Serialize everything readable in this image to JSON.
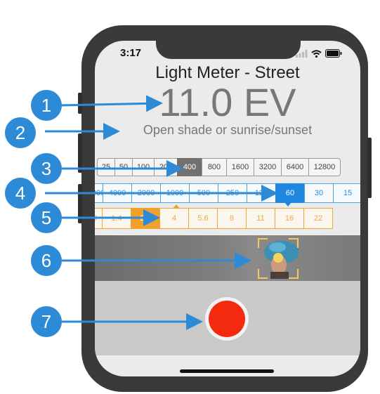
{
  "status": {
    "time": "3:17"
  },
  "header": {
    "title": "Light Meter - Street",
    "ev_value": "11.0 EV",
    "description": "Open shade or sunrise/sunset"
  },
  "iso": {
    "values": [
      "25",
      "50",
      "100",
      "200",
      "400",
      "800",
      "1600",
      "3200",
      "6400",
      "12800"
    ],
    "selected": "400"
  },
  "shutter": {
    "values": [
      "8000",
      "4000",
      "2000",
      "1000",
      "500",
      "250",
      "125",
      "60",
      "30",
      "15"
    ],
    "selected": "60"
  },
  "aperture": {
    "values": [
      "1.0",
      "1.4",
      "2.8",
      "4",
      "5.6",
      "8",
      "11",
      "16",
      "22"
    ],
    "selected": "2.8"
  },
  "callouts": [
    "1",
    "2",
    "3",
    "4",
    "5",
    "6",
    "7"
  ],
  "colors": {
    "callout": "#2d8ad6",
    "shutter_accent": "#1e88e0",
    "aperture_accent": "#f0a12c",
    "record_button": "#f42a0e"
  }
}
